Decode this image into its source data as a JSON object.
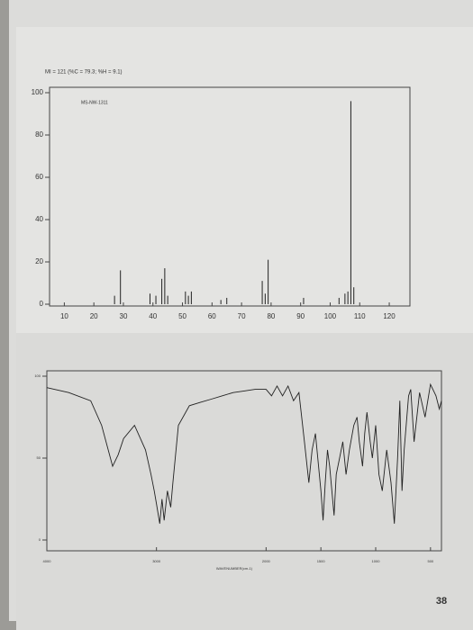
{
  "page_number": "38",
  "chart_data": [
    {
      "type": "bar",
      "title": "MI = 121 (%C = 79.3; %H = 9.1)",
      "label": "MS-NW-1311",
      "x": [
        27,
        29,
        39,
        41,
        43,
        44,
        45,
        51,
        52,
        53,
        63,
        65,
        77,
        78,
        79,
        91,
        103,
        105,
        106,
        107,
        108
      ],
      "values": [
        4,
        16,
        5,
        4,
        12,
        17,
        4,
        6,
        4,
        6,
        2,
        3,
        11,
        5,
        21,
        3,
        3,
        5,
        6,
        96,
        8
      ],
      "color": "#222222",
      "xlim": [
        5,
        127
      ],
      "xticks": [
        10,
        20,
        30,
        40,
        50,
        60,
        70,
        80,
        90,
        100,
        110,
        120
      ],
      "ylim": [
        0,
        100
      ],
      "yticks": [
        0,
        20,
        40,
        60,
        80,
        100
      ]
    },
    {
      "type": "line",
      "xlabel": "WAVENUMBER(cm-1)",
      "x": [
        4000,
        3800,
        3600,
        3500,
        3400,
        3350,
        3300,
        3200,
        3100,
        3050,
        3020,
        3000,
        2970,
        2950,
        2930,
        2900,
        2870,
        2850,
        2800,
        2700,
        2600,
        2500,
        2400,
        2300,
        2200,
        2100,
        2000,
        1950,
        1900,
        1850,
        1800,
        1750,
        1700,
        1650,
        1610,
        1580,
        1550,
        1500,
        1480,
        1460,
        1440,
        1420,
        1380,
        1360,
        1330,
        1300,
        1270,
        1240,
        1200,
        1170,
        1150,
        1120,
        1100,
        1080,
        1050,
        1030,
        1000,
        970,
        940,
        900,
        860,
        830,
        800,
        780,
        760,
        740,
        700,
        680,
        650,
        600,
        550,
        500,
        450,
        420,
        400
      ],
      "values": [
        93,
        90,
        85,
        70,
        45,
        52,
        62,
        70,
        55,
        40,
        30,
        22,
        10,
        25,
        12,
        30,
        20,
        35,
        70,
        82,
        84,
        86,
        88,
        90,
        91,
        92,
        92,
        88,
        94,
        88,
        94,
        85,
        90,
        60,
        35,
        55,
        65,
        30,
        12,
        35,
        55,
        45,
        15,
        40,
        50,
        60,
        40,
        55,
        70,
        75,
        60,
        45,
        65,
        78,
        60,
        50,
        70,
        40,
        30,
        55,
        35,
        10,
        50,
        85,
        30,
        55,
        88,
        92,
        60,
        90,
        75,
        95,
        88,
        80,
        85
      ],
      "color": "#222222",
      "xlim": [
        4000,
        400
      ],
      "xticks": [
        4000,
        3000,
        2000,
        1500,
        1000,
        500
      ],
      "ylim": [
        0,
        100
      ],
      "yticks": [
        0,
        50,
        100
      ]
    }
  ]
}
